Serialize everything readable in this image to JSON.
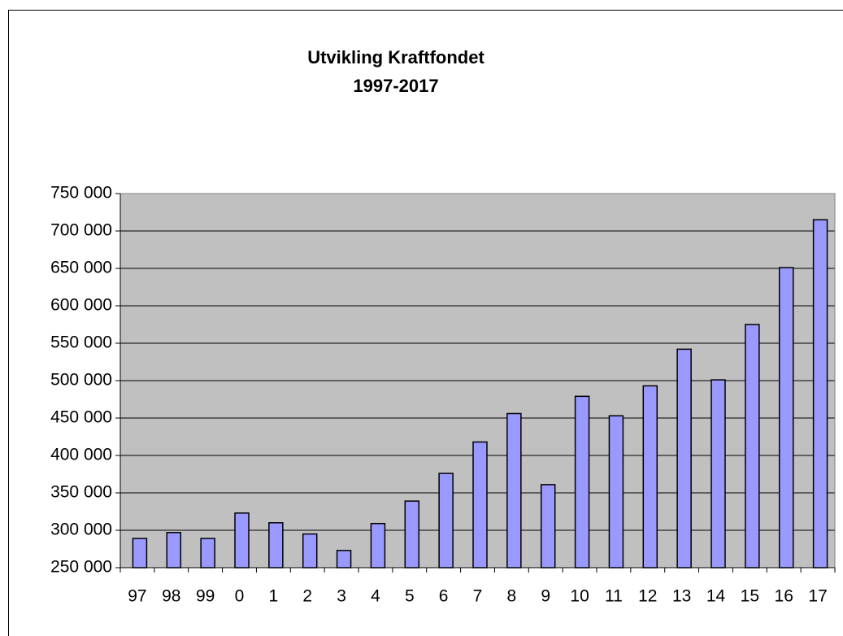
{
  "chart_data": {
    "type": "bar",
    "title": [
      "Utvikling Kraftfondet",
      "1997-2017"
    ],
    "categories": [
      "97",
      "98",
      "99",
      "0",
      "1",
      "2",
      "3",
      "4",
      "5",
      "6",
      "7",
      "8",
      "9",
      "10",
      "11",
      "12",
      "13",
      "14",
      "15",
      "16",
      "17"
    ],
    "values": [
      289000,
      297000,
      289000,
      323000,
      310000,
      295000,
      273000,
      309000,
      339000,
      376000,
      418000,
      456000,
      361000,
      479000,
      453000,
      493000,
      542000,
      501000,
      575000,
      651000,
      715000
    ],
    "color": "#9999ff",
    "ylim": [
      250000,
      750000
    ],
    "yticks": [
      {
        "value": 250000,
        "label": "250 000"
      },
      {
        "value": 300000,
        "label": "300 000"
      },
      {
        "value": 350000,
        "label": "350 000"
      },
      {
        "value": 400000,
        "label": "400 000"
      },
      {
        "value": 450000,
        "label": "450 000"
      },
      {
        "value": 500000,
        "label": "500 000"
      },
      {
        "value": 550000,
        "label": "550 000"
      },
      {
        "value": 600000,
        "label": "600 000"
      },
      {
        "value": 650000,
        "label": "650 000"
      },
      {
        "value": 700000,
        "label": "700 000"
      },
      {
        "value": 750000,
        "label": "750 000"
      }
    ],
    "grid": true
  }
}
